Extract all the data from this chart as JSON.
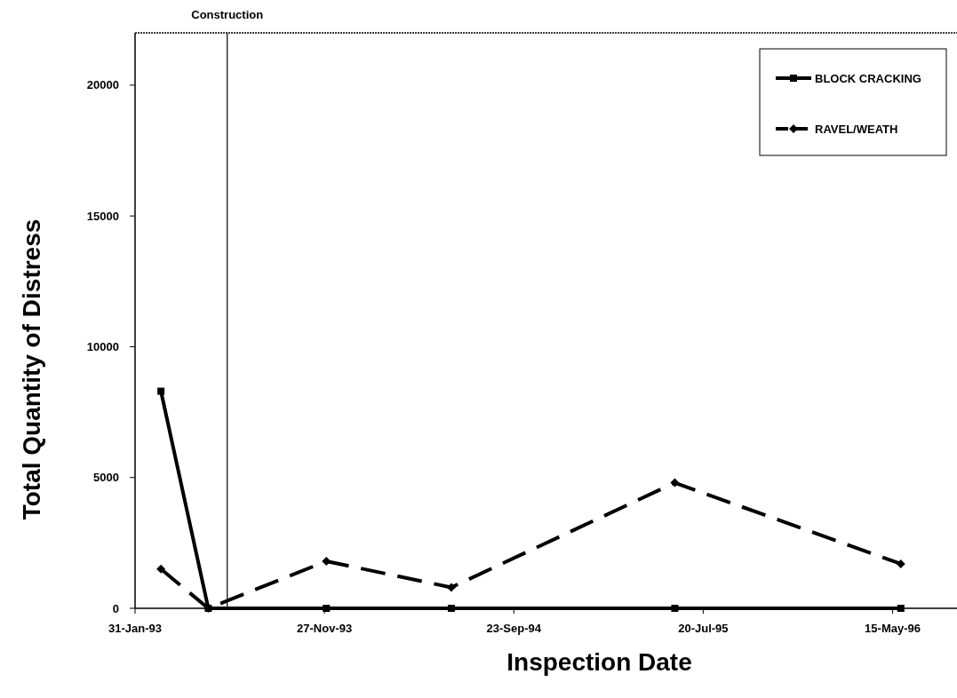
{
  "chart_data": {
    "type": "line",
    "xlabel": "Inspection Date",
    "ylabel": "Total Quantity of Distress",
    "x": [
      "1993-03-13",
      "1993-05-27",
      "1993-11-30",
      "1994-06-16",
      "1995-06-05",
      "1996-05-28"
    ],
    "series": [
      {
        "name": "BLOCK CRACKING",
        "color": "#000000",
        "values": [
          8300,
          0,
          0,
          0,
          0,
          0
        ],
        "marker": "square",
        "line_style": "solid"
      },
      {
        "name": "RAVEL/WEATH",
        "color": "#000000",
        "values": [
          1500,
          0,
          1800,
          800,
          4800,
          1700
        ],
        "marker": "diamond",
        "line_style": "dashed"
      }
    ],
    "xlim": [
      "1993-01-31",
      "1996-08-25"
    ],
    "xticks": [
      {
        "value": "1993-01-31",
        "label": "31-Jan-93"
      },
      {
        "value": "1993-11-27",
        "label": "27-Nov-93"
      },
      {
        "value": "1994-09-23",
        "label": "23-Sep-94"
      },
      {
        "value": "1995-07-20",
        "label": "20-Jul-95"
      },
      {
        "value": "1996-05-15",
        "label": "15-May-96"
      }
    ],
    "ylim": [
      0,
      22000
    ],
    "yticks": [
      0,
      5000,
      10000,
      15000,
      20000
    ],
    "ref_lines": [
      {
        "axis": "x",
        "value": "1993-06-26",
        "label": "Construction",
        "color": "#000000"
      }
    ],
    "legend": "top right",
    "grid": false
  }
}
